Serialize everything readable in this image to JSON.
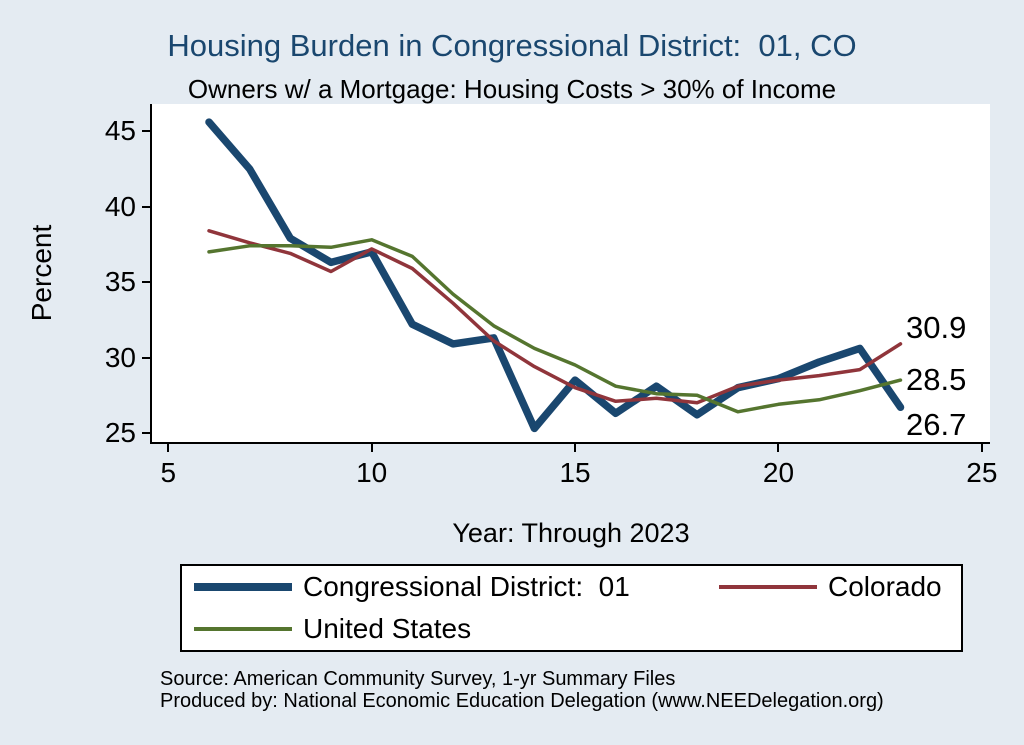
{
  "title": "Housing Burden in Congressional District:  01, CO",
  "subtitle": "Owners w/ a Mortgage: Housing Costs > 30% of Income",
  "colors": {
    "background": "#e4ebf2",
    "title": "#1a476f",
    "plot_background": "#ffffff",
    "axis": "#000000",
    "district": "#1a476f",
    "colorado": "#90353b",
    "united_states": "#55752f"
  },
  "chart_data": {
    "type": "line",
    "title": "Housing Burden in Congressional District:  01, CO",
    "subtitle": "Owners w/ a Mortgage: Housing Costs > 30% of Income",
    "xlabel": "Year: Through 2023",
    "ylabel": "Percent",
    "xlim": [
      4.6,
      25.2
    ],
    "ylim": [
      24.4,
      46.8
    ],
    "xticks": [
      5,
      10,
      15,
      20,
      25
    ],
    "yticks": [
      25,
      30,
      35,
      40,
      45
    ],
    "grid": false,
    "legend_position": "bottom",
    "x": [
      6,
      7,
      8,
      9,
      10,
      11,
      12,
      13,
      14,
      15,
      16,
      17,
      18,
      19,
      20,
      21,
      22,
      23
    ],
    "series": [
      {
        "id": "district",
        "name": "Congressional District:  01",
        "color": "#1a476f",
        "stroke_width": 7.5,
        "values": [
          45.6,
          42.5,
          37.9,
          36.3,
          37.0,
          32.2,
          30.9,
          31.3,
          25.3,
          28.5,
          26.3,
          28.1,
          26.2,
          28.0,
          28.6,
          29.7,
          30.6,
          26.7
        ]
      },
      {
        "id": "colorado",
        "name": "Colorado",
        "color": "#90353b",
        "stroke_width": 3.5,
        "values": [
          38.4,
          37.6,
          36.9,
          35.7,
          37.2,
          35.9,
          33.6,
          31.1,
          29.4,
          28.0,
          27.1,
          27.3,
          27.0,
          28.1,
          28.5,
          28.8,
          29.2,
          30.9
        ]
      },
      {
        "id": "united_states",
        "name": "United States",
        "color": "#55752f",
        "stroke_width": 3.5,
        "values": [
          37.0,
          37.4,
          37.4,
          37.3,
          37.8,
          36.7,
          34.2,
          32.1,
          30.6,
          29.5,
          28.1,
          27.6,
          27.5,
          26.4,
          26.9,
          27.2,
          27.8,
          28.5
        ]
      }
    ],
    "end_labels": [
      {
        "text": "30.9",
        "series": "colorado",
        "value": 30.9
      },
      {
        "text": "28.5",
        "series": "united_states",
        "value": 28.5
      },
      {
        "text": "26.7",
        "series": "district",
        "value": 26.7
      }
    ]
  },
  "legend": {
    "items": [
      {
        "label": "Congressional District:  01",
        "color": "#1a476f",
        "thickness": 8
      },
      {
        "label": "Colorado",
        "color": "#90353b",
        "thickness": 4
      },
      {
        "label": "United States",
        "color": "#55752f",
        "thickness": 4
      }
    ]
  },
  "footer": {
    "source": "Source: American Community Survey, 1-yr Summary Files",
    "produced": "Produced by: National Economic Education Delegation (www.NEEDelegation.org)"
  }
}
